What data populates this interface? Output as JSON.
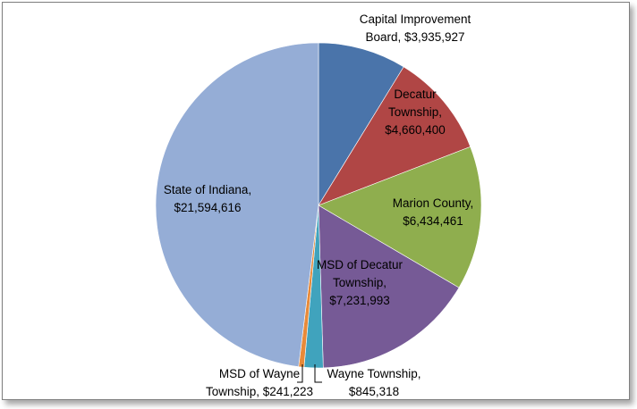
{
  "chart_data": {
    "type": "pie",
    "title": "",
    "legend": "none",
    "start_angle_deg": 0,
    "direction": "clockwise",
    "slices": [
      {
        "name": "Capital Improvement Board",
        "value": 3935927,
        "label_lines": [
          "Capital Improvement",
          "Board, $3,935,927"
        ],
        "color": "#4a74aa"
      },
      {
        "name": "Decatur Township",
        "value": 4660400,
        "label_lines": [
          "Decatur",
          "Township,",
          "$4,660,400"
        ],
        "color": "#b04645"
      },
      {
        "name": "Marion County",
        "value": 6434461,
        "label_lines": [
          "Marion County,",
          "$6,434,461"
        ],
        "color": "#8fae4e"
      },
      {
        "name": "MSD of Decatur Township",
        "value": 7231993,
        "label_lines": [
          "MSD of Decatur",
          "Township,",
          "$7,231,993"
        ],
        "color": "#765a96"
      },
      {
        "name": "Wayne Township",
        "value": 845318,
        "label_lines": [
          "Wayne Township,",
          "$845,318"
        ],
        "color": "#40a3bd"
      },
      {
        "name": "MSD of Wayne Township",
        "value": 241223,
        "label_lines": [
          "MSD of Wayne",
          "Township, $241,223"
        ],
        "color": "#e88a39"
      },
      {
        "name": "State of Indiana",
        "value": 21594616,
        "label_lines": [
          "State  of Indiana,",
          "$21,594,616"
        ],
        "color": "#95add6"
      }
    ]
  }
}
